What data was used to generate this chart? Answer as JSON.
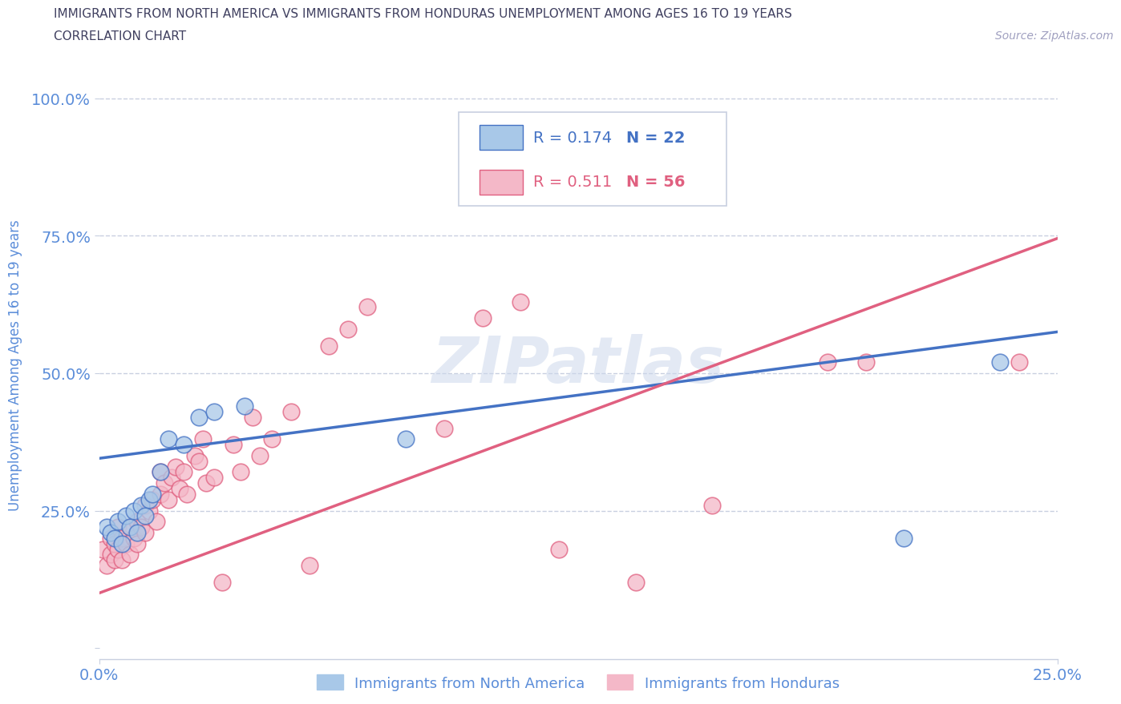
{
  "title_line1": "IMMIGRANTS FROM NORTH AMERICA VS IMMIGRANTS FROM HONDURAS UNEMPLOYMENT AMONG AGES 16 TO 19 YEARS",
  "title_line2": "CORRELATION CHART",
  "source": "Source: ZipAtlas.com",
  "ylabel": "Unemployment Among Ages 16 to 19 years",
  "xlim": [
    0.0,
    0.25
  ],
  "ylim": [
    -0.02,
    1.05
  ],
  "blue_R": 0.174,
  "blue_N": 22,
  "pink_R": 0.511,
  "pink_N": 56,
  "blue_label": "Immigrants from North America",
  "pink_label": "Immigrants from Honduras",
  "blue_color": "#a8c8e8",
  "pink_color": "#f4b8c8",
  "blue_line_color": "#4472c4",
  "pink_line_color": "#e06080",
  "axis_label_color": "#5b8dd9",
  "title_color": "#404060",
  "source_color": "#a0a0c0",
  "grid_color": "#c8cfe0",
  "blue_scatter_x": [
    0.002,
    0.003,
    0.004,
    0.005,
    0.006,
    0.007,
    0.008,
    0.009,
    0.01,
    0.011,
    0.012,
    0.013,
    0.014,
    0.016,
    0.018,
    0.022,
    0.026,
    0.03,
    0.038,
    0.08,
    0.21,
    0.235
  ],
  "blue_scatter_y": [
    0.22,
    0.21,
    0.2,
    0.23,
    0.19,
    0.24,
    0.22,
    0.25,
    0.21,
    0.26,
    0.24,
    0.27,
    0.28,
    0.32,
    0.38,
    0.37,
    0.42,
    0.43,
    0.44,
    0.38,
    0.2,
    0.52
  ],
  "pink_scatter_x": [
    0.001,
    0.002,
    0.003,
    0.003,
    0.004,
    0.004,
    0.005,
    0.005,
    0.006,
    0.006,
    0.007,
    0.008,
    0.008,
    0.009,
    0.01,
    0.01,
    0.011,
    0.012,
    0.012,
    0.013,
    0.014,
    0.015,
    0.016,
    0.016,
    0.017,
    0.018,
    0.019,
    0.02,
    0.021,
    0.022,
    0.023,
    0.025,
    0.026,
    0.027,
    0.028,
    0.03,
    0.032,
    0.035,
    0.037,
    0.04,
    0.042,
    0.045,
    0.05,
    0.055,
    0.06,
    0.065,
    0.07,
    0.09,
    0.1,
    0.11,
    0.12,
    0.14,
    0.16,
    0.19,
    0.2,
    0.24
  ],
  "pink_scatter_y": [
    0.18,
    0.15,
    0.17,
    0.2,
    0.16,
    0.19,
    0.18,
    0.22,
    0.16,
    0.2,
    0.19,
    0.17,
    0.22,
    0.2,
    0.19,
    0.23,
    0.22,
    0.21,
    0.26,
    0.25,
    0.27,
    0.23,
    0.28,
    0.32,
    0.3,
    0.27,
    0.31,
    0.33,
    0.29,
    0.32,
    0.28,
    0.35,
    0.34,
    0.38,
    0.3,
    0.31,
    0.12,
    0.37,
    0.32,
    0.42,
    0.35,
    0.38,
    0.43,
    0.15,
    0.55,
    0.58,
    0.62,
    0.4,
    0.6,
    0.63,
    0.18,
    0.12,
    0.26,
    0.52,
    0.52,
    0.52
  ],
  "blue_line_x0": 0.0,
  "blue_line_y0": 0.345,
  "blue_line_x1": 0.25,
  "blue_line_y1": 0.575,
  "pink_line_x0": 0.0,
  "pink_line_y0": 0.1,
  "pink_line_x1": 0.25,
  "pink_line_y1": 0.745
}
